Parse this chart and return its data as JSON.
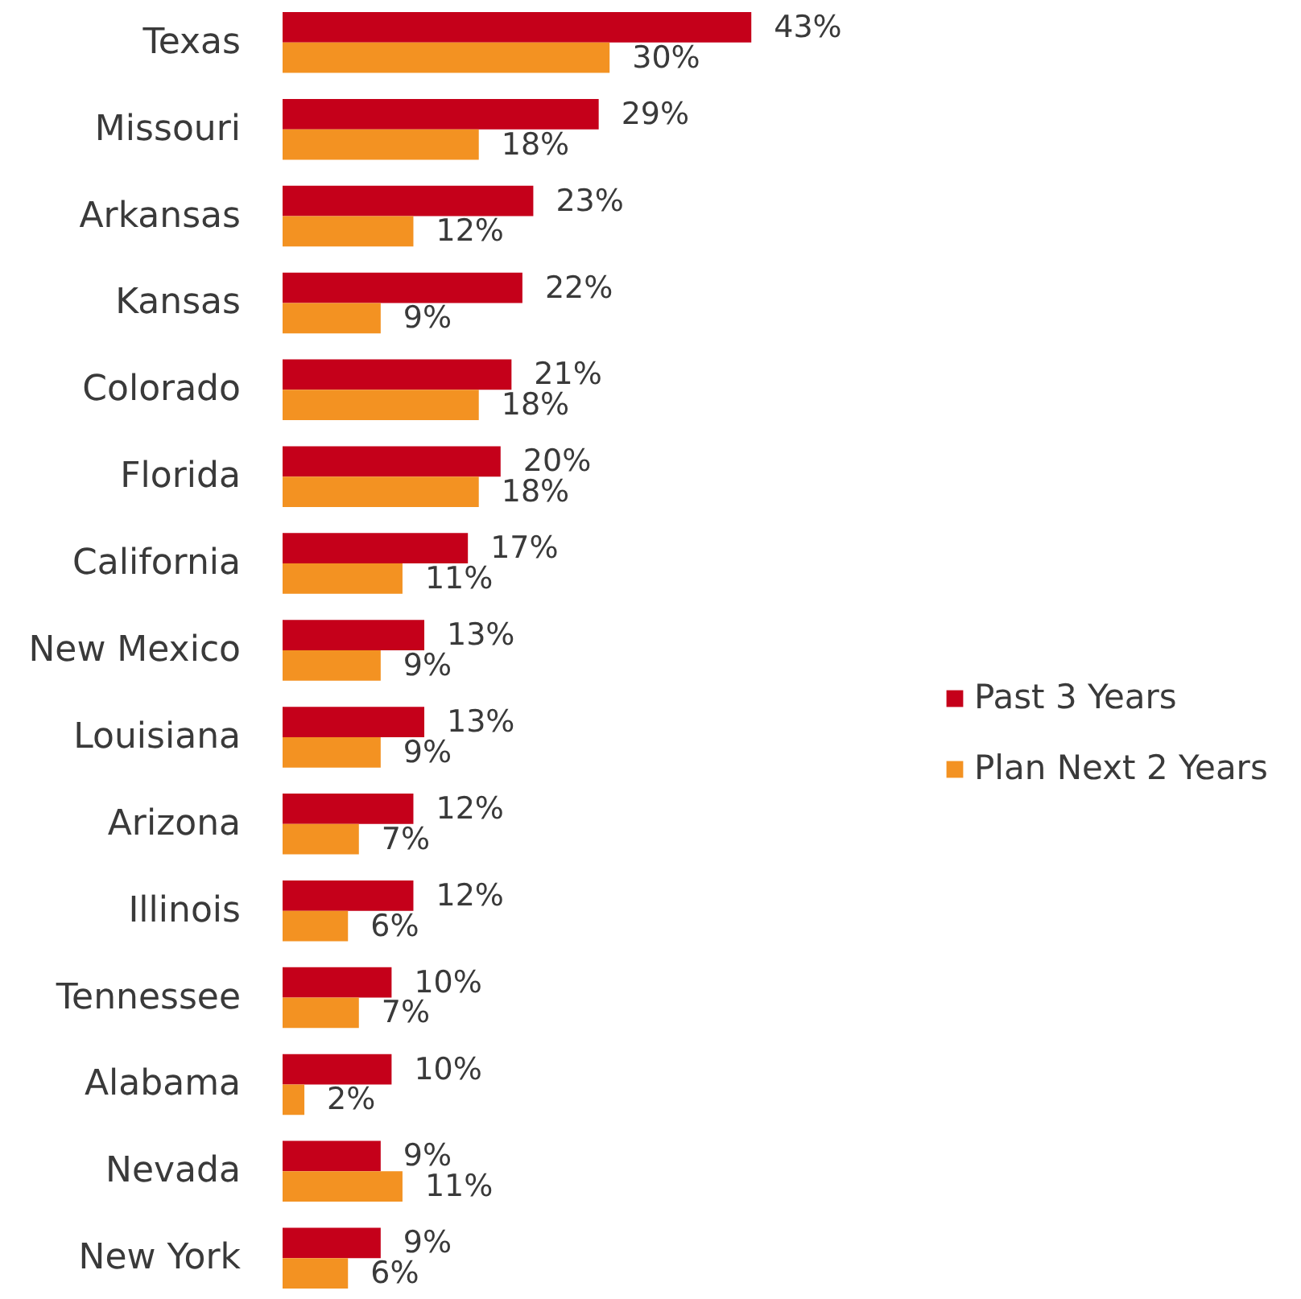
{
  "chart_data": {
    "type": "bar",
    "orientation": "horizontal",
    "legend": "right",
    "categories": [
      "Texas",
      "Missouri",
      "Arkansas",
      "Kansas",
      "Colorado",
      "Florida",
      "California",
      "New Mexico",
      "Louisiana",
      "Arizona",
      "Illinois",
      "Tennessee",
      "Alabama",
      "Nevada",
      "New York"
    ],
    "series": [
      {
        "name": "Past 3 Years",
        "color": "#c5001a",
        "values": [
          43,
          29,
          23,
          22,
          21,
          20,
          17,
          13,
          13,
          12,
          12,
          10,
          10,
          9,
          9
        ],
        "value_labels": [
          "43%",
          "29%",
          "23%",
          "22%",
          "21%",
          "20%",
          "17%",
          "13%",
          "13%",
          "12%",
          "12%",
          "10%",
          "10%",
          "9%",
          "9%"
        ]
      },
      {
        "name": "Plan Next 2 Years",
        "color": "#f39222",
        "values": [
          30,
          18,
          12,
          9,
          18,
          18,
          11,
          9,
          9,
          7,
          6,
          7,
          2,
          11,
          6
        ],
        "value_labels": [
          "30%",
          "18%",
          "12%",
          "9%",
          "18%",
          "18%",
          "11%",
          "9%",
          "9%",
          "7%",
          "6%",
          "7%",
          "2%",
          "11%",
          "6%"
        ]
      }
    ]
  }
}
